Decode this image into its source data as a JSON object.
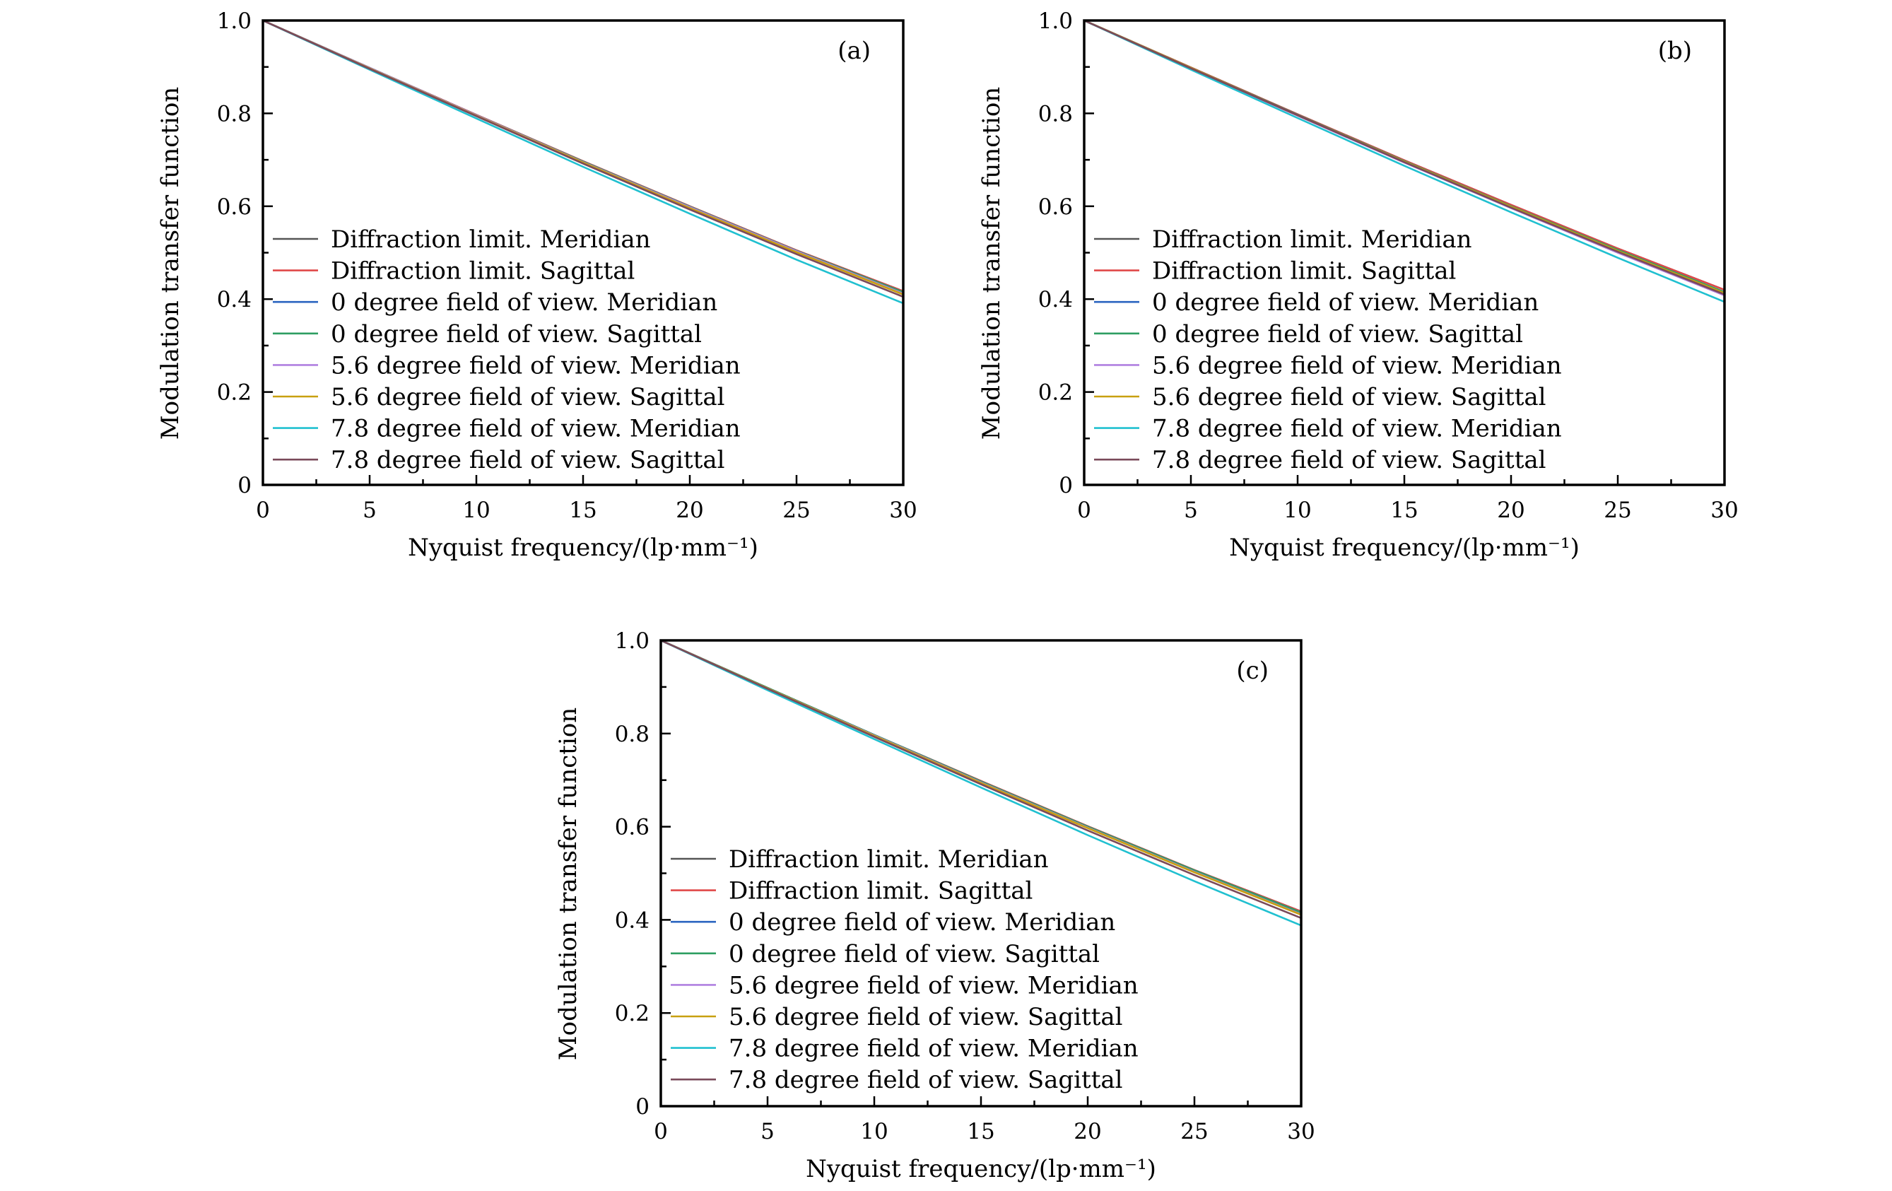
{
  "chart_data": [
    {
      "type": "line",
      "panel_label": "(a)",
      "xlabel": "Nyquist frequency/(lp·mm⁻¹)",
      "ylabel": "Modulation transfer function",
      "xlim": [
        0,
        30
      ],
      "ylim": [
        0,
        1.0
      ],
      "xticks": [
        "0",
        "5",
        "10",
        "15",
        "20",
        "25",
        "30"
      ],
      "yticks": [
        "0",
        "0.2",
        "0.4",
        "0.6",
        "0.8",
        "1.0"
      ],
      "legend_position": "center-left",
      "x": [
        0,
        5,
        10,
        15,
        20,
        25,
        30
      ],
      "series": [
        {
          "name": "Diffraction limit. Meridian",
          "color": "#555555",
          "values": [
            1,
            0.898,
            0.797,
            0.697,
            0.6,
            0.505,
            0.417
          ]
        },
        {
          "name": "Diffraction limit. Sagittal",
          "color": "#e04848",
          "values": [
            1,
            0.898,
            0.797,
            0.697,
            0.6,
            0.505,
            0.417
          ]
        },
        {
          "name": "0 degree field of view. Meridian",
          "color": "#2a64c0",
          "values": [
            1,
            0.898,
            0.796,
            0.696,
            0.599,
            0.504,
            0.415
          ]
        },
        {
          "name": "0 degree field of view. Sagittal",
          "color": "#2e9e62",
          "values": [
            1,
            0.898,
            0.796,
            0.696,
            0.599,
            0.504,
            0.415
          ]
        },
        {
          "name": "5.6 degree field of view. Meridian",
          "color": "#b080e0",
          "values": [
            1,
            0.898,
            0.796,
            0.695,
            0.598,
            0.503,
            0.412
          ]
        },
        {
          "name": "5.6 degree field of view. Sagittal",
          "color": "#c8a010",
          "values": [
            1,
            0.897,
            0.795,
            0.694,
            0.596,
            0.501,
            0.41
          ]
        },
        {
          "name": "7.8 degree field of view. Meridian",
          "color": "#20c0d0",
          "values": [
            1,
            0.894,
            0.789,
            0.685,
            0.584,
            0.485,
            0.391
          ]
        },
        {
          "name": "7.8 degree field of view. Sagittal",
          "color": "#7a4a5a",
          "values": [
            1,
            0.896,
            0.794,
            0.692,
            0.593,
            0.497,
            0.405
          ]
        }
      ]
    },
    {
      "type": "line",
      "panel_label": "(b)",
      "xlabel": "Nyquist frequency/(lp·mm⁻¹)",
      "ylabel": "Modulation transfer function",
      "xlim": [
        0,
        30
      ],
      "ylim": [
        0,
        1.0
      ],
      "xticks": [
        "0",
        "5",
        "10",
        "15",
        "20",
        "25",
        "30"
      ],
      "yticks": [
        "0",
        "0.2",
        "0.4",
        "0.6",
        "0.8",
        "1.0"
      ],
      "legend_position": "center-left",
      "x": [
        0,
        5,
        10,
        15,
        20,
        25,
        30
      ],
      "series": [
        {
          "name": "Diffraction limit. Meridian",
          "color": "#555555",
          "values": [
            1,
            0.899,
            0.798,
            0.699,
            0.603,
            0.509,
            0.42
          ]
        },
        {
          "name": "Diffraction limit. Sagittal",
          "color": "#e04848",
          "values": [
            1,
            0.899,
            0.798,
            0.699,
            0.603,
            0.509,
            0.42
          ]
        },
        {
          "name": "0 degree field of view. Meridian",
          "color": "#2a64c0",
          "values": [
            1,
            0.898,
            0.797,
            0.697,
            0.6,
            0.506,
            0.415
          ]
        },
        {
          "name": "0 degree field of view. Sagittal",
          "color": "#2e9e62",
          "values": [
            1,
            0.898,
            0.797,
            0.697,
            0.6,
            0.506,
            0.415
          ]
        },
        {
          "name": "5.6 degree field of view. Meridian",
          "color": "#b080e0",
          "values": [
            1,
            0.897,
            0.795,
            0.694,
            0.596,
            0.5,
            0.408
          ]
        },
        {
          "name": "5.6 degree field of view. Sagittal",
          "color": "#c8a010",
          "values": [
            1,
            0.898,
            0.796,
            0.696,
            0.599,
            0.504,
            0.413
          ]
        },
        {
          "name": "7.8 degree field of view. Meridian",
          "color": "#20c0d0",
          "values": [
            1,
            0.894,
            0.79,
            0.687,
            0.587,
            0.489,
            0.394
          ]
        },
        {
          "name": "7.8 degree field of view. Sagittal",
          "color": "#7a4a5a",
          "values": [
            1,
            0.897,
            0.796,
            0.695,
            0.597,
            0.502,
            0.41
          ]
        }
      ]
    },
    {
      "type": "line",
      "panel_label": "(c)",
      "xlabel": "Nyquist frequency/(lp·mm⁻¹)",
      "ylabel": "Modulation transfer function",
      "xlim": [
        0,
        30
      ],
      "ylim": [
        0,
        1.0
      ],
      "xticks": [
        "0",
        "5",
        "10",
        "15",
        "20",
        "25",
        "30"
      ],
      "yticks": [
        "0",
        "0.2",
        "0.4",
        "0.6",
        "0.8",
        "1.0"
      ],
      "legend_position": "center-left",
      "x": [
        0,
        5,
        10,
        15,
        20,
        25,
        30
      ],
      "series": [
        {
          "name": "Diffraction limit. Meridian",
          "color": "#555555",
          "values": [
            1,
            0.898,
            0.797,
            0.698,
            0.601,
            0.507,
            0.418
          ]
        },
        {
          "name": "Diffraction limit. Sagittal",
          "color": "#e04848",
          "values": [
            1,
            0.898,
            0.797,
            0.698,
            0.601,
            0.507,
            0.418
          ]
        },
        {
          "name": "0 degree field of view. Meridian",
          "color": "#2a64c0",
          "values": [
            1,
            0.898,
            0.797,
            0.697,
            0.6,
            0.506,
            0.416
          ]
        },
        {
          "name": "0 degree field of view. Sagittal",
          "color": "#2e9e62",
          "values": [
            1,
            0.898,
            0.797,
            0.697,
            0.6,
            0.506,
            0.416
          ]
        },
        {
          "name": "5.6 degree field of view. Meridian",
          "color": "#b080e0",
          "values": [
            1,
            0.897,
            0.796,
            0.695,
            0.598,
            0.503,
            0.412
          ]
        },
        {
          "name": "5.6 degree field of view. Sagittal",
          "color": "#c8a010",
          "values": [
            1,
            0.897,
            0.795,
            0.694,
            0.597,
            0.502,
            0.411
          ]
        },
        {
          "name": "7.8 degree field of view. Meridian",
          "color": "#20c0d0",
          "values": [
            1,
            0.893,
            0.788,
            0.684,
            0.582,
            0.483,
            0.388
          ]
        },
        {
          "name": "7.8 degree field of view. Sagittal",
          "color": "#7a4a5a",
          "values": [
            1,
            0.896,
            0.793,
            0.691,
            0.592,
            0.496,
            0.404
          ]
        }
      ]
    }
  ]
}
